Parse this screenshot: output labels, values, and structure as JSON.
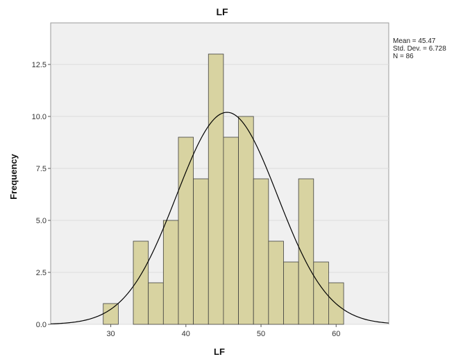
{
  "chart_data": {
    "type": "bar",
    "title": "LF",
    "xlabel": "LF",
    "ylabel": "Frequency",
    "xlim": [
      22,
      67
    ],
    "ylim": [
      0,
      14.5
    ],
    "x_ticks": [
      30,
      40,
      50,
      60
    ],
    "y_ticks": [
      "0.0",
      "2.5",
      "5.0",
      "7.5",
      "10.0",
      "12.5"
    ],
    "bin_width": 2,
    "bins": [
      {
        "start": 29,
        "end": 31,
        "count": 1
      },
      {
        "start": 31,
        "end": 33,
        "count": 0
      },
      {
        "start": 33,
        "end": 35,
        "count": 4
      },
      {
        "start": 35,
        "end": 37,
        "count": 2
      },
      {
        "start": 37,
        "end": 39,
        "count": 5
      },
      {
        "start": 39,
        "end": 41,
        "count": 9
      },
      {
        "start": 41,
        "end": 43,
        "count": 7
      },
      {
        "start": 43,
        "end": 45,
        "count": 13
      },
      {
        "start": 45,
        "end": 47,
        "count": 9
      },
      {
        "start": 47,
        "end": 49,
        "count": 10
      },
      {
        "start": 49,
        "end": 51,
        "count": 7
      },
      {
        "start": 51,
        "end": 53,
        "count": 4
      },
      {
        "start": 53,
        "end": 55,
        "count": 3
      },
      {
        "start": 55,
        "end": 57,
        "count": 7
      },
      {
        "start": 57,
        "end": 59,
        "count": 3
      },
      {
        "start": 59,
        "end": 61,
        "count": 2
      }
    ],
    "normal_curve": {
      "mean": 45.47,
      "std_dev": 6.728,
      "n": 86
    },
    "colors": {
      "bar_fill": "#d8d3a1",
      "bar_stroke": "#3f3f3f",
      "plot_bg": "#f0f0f0",
      "curve": "#000000"
    }
  },
  "stats": {
    "mean": "Mean = 45.47",
    "std_dev": "Std. Dev. = 6.728",
    "n": "N = 86"
  }
}
